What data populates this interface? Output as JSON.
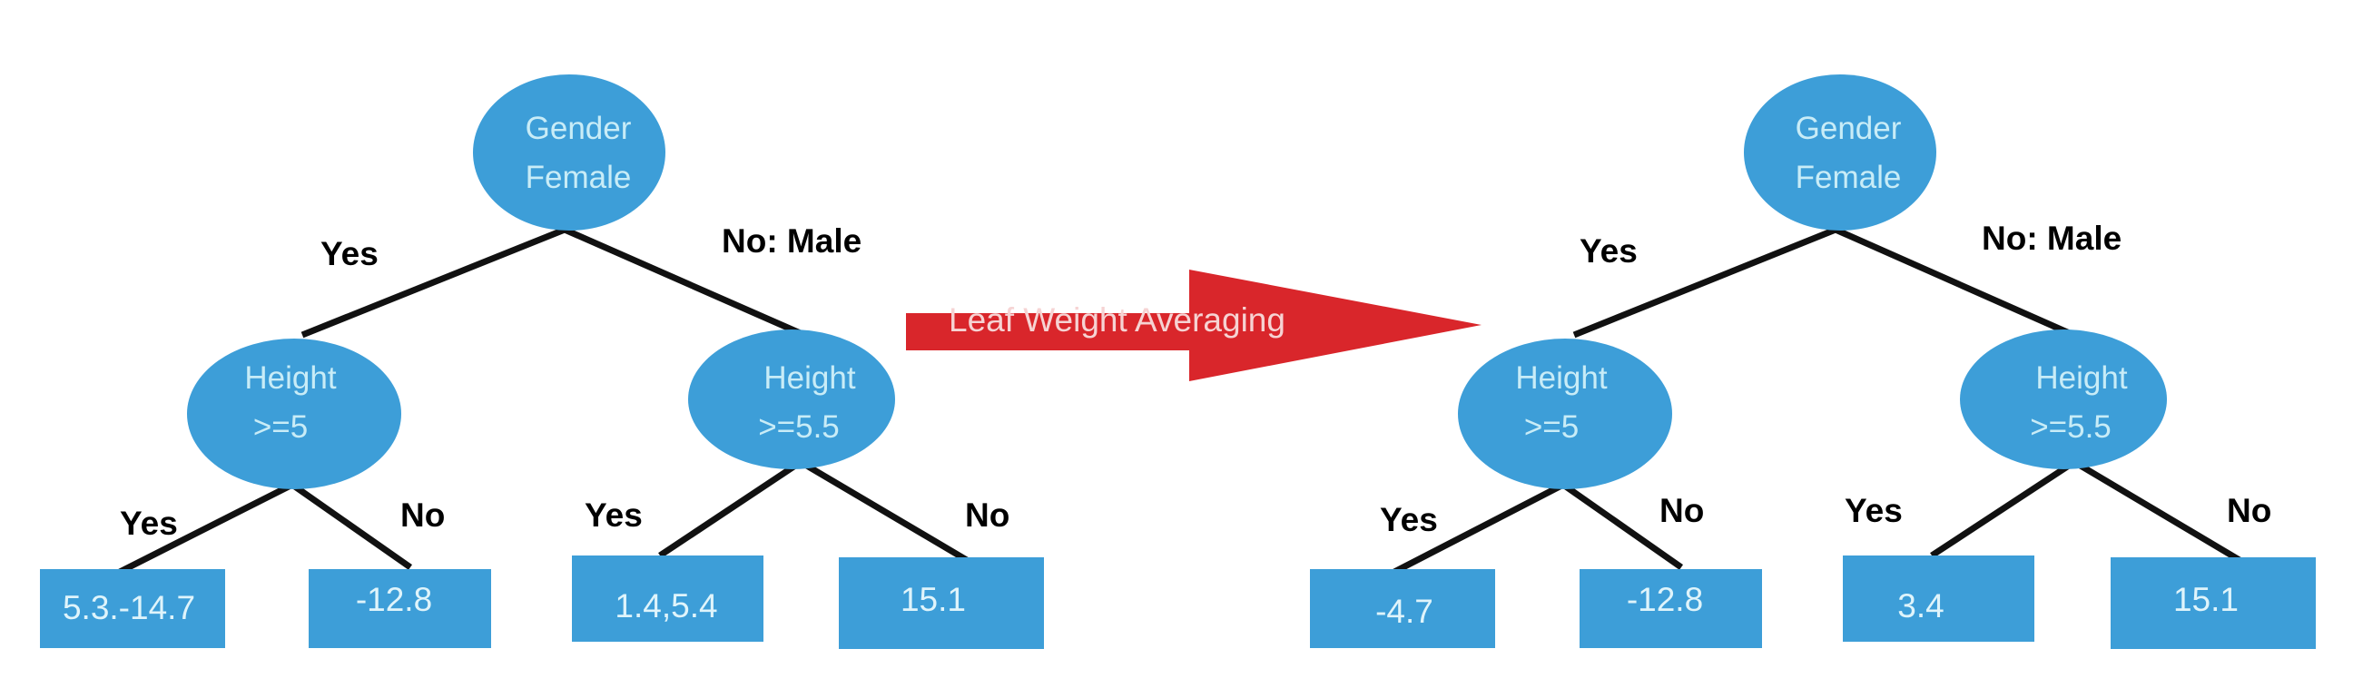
{
  "colors": {
    "node_fill": "#3d9ed8",
    "node_text": "#c8ecf7",
    "leaf_fill": "#3d9ed8",
    "leaf_text": "#dff4fb",
    "edge": "#111111",
    "arrow_fill": "#d9262b",
    "arrow_text": "#f6d3d3"
  },
  "arrow": {
    "label": "Leaf Weight Averaging",
    "icon": "right-arrow-icon"
  },
  "trees": [
    {
      "root": {
        "line1": "Gender",
        "line2": "Female"
      },
      "root_yes_label": "Yes",
      "root_no_label": "No: Male",
      "left_split": {
        "line1": "Height",
        "line2": ">=5",
        "yes_label": "Yes",
        "no_label": "No"
      },
      "right_split": {
        "line1": "Height",
        "line2": ">=5.5",
        "yes_label": "Yes",
        "no_label": "No"
      },
      "leaves": [
        "5.3.-14.7",
        "-12.8",
        "1.4,5.4",
        "15.1"
      ]
    },
    {
      "root": {
        "line1": "Gender",
        "line2": "Female"
      },
      "root_yes_label": "Yes",
      "root_no_label": "No: Male",
      "left_split": {
        "line1": "Height",
        "line2": ">=5",
        "yes_label": "Yes",
        "no_label": "No"
      },
      "right_split": {
        "line1": "Height",
        "line2": ">=5.5",
        "yes_label": "Yes",
        "no_label": "No"
      },
      "leaves": [
        "-4.7",
        "-12.8",
        "3.4",
        "15.1"
      ]
    }
  ]
}
